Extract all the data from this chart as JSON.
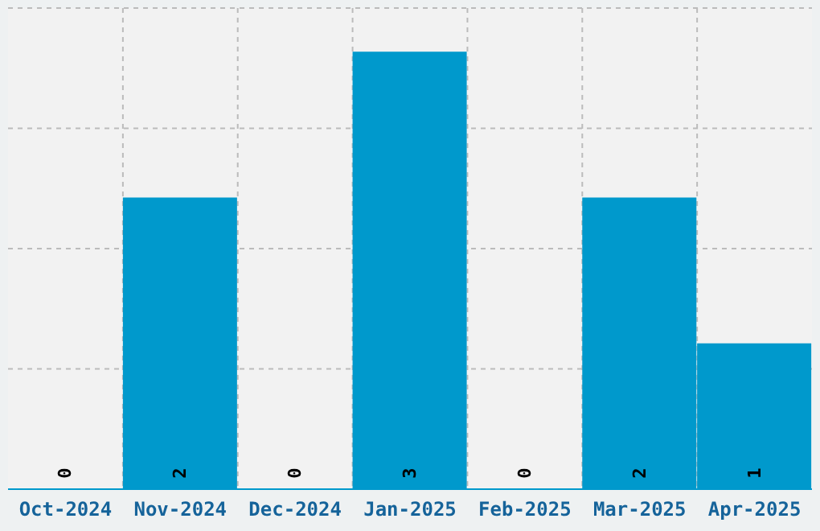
{
  "chart_data": {
    "type": "bar",
    "categories": [
      "Oct-2024",
      "Nov-2024",
      "Dec-2024",
      "Jan-2025",
      "Feb-2025",
      "Mar-2025",
      "Apr-2025"
    ],
    "values": [
      0,
      2,
      0,
      3,
      0,
      2,
      1
    ],
    "color": "#0099cc",
    "data_labels": true,
    "grid": true,
    "tick_labels": "x"
  }
}
